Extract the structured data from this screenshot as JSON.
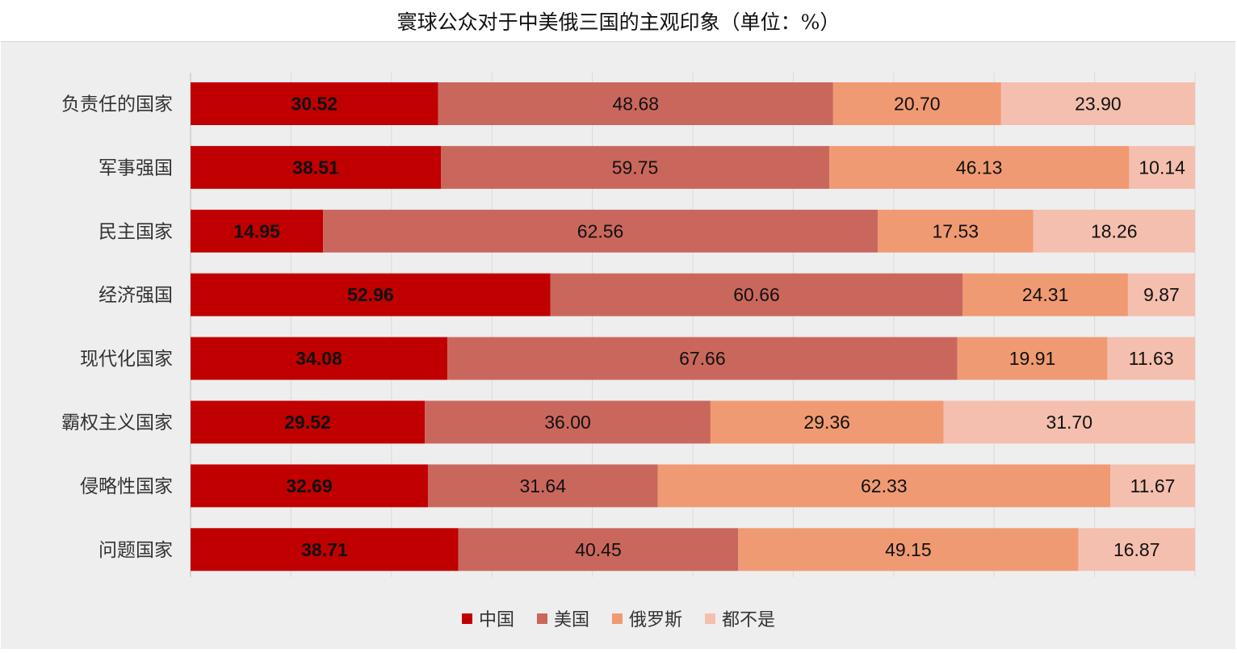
{
  "chart_data": {
    "type": "bar",
    "orientation": "horizontal",
    "stacked": true,
    "title": "寰球公众对于中美俄三国的主观印象（单位：%）",
    "categories": [
      "负责任的国家",
      "军事强国",
      "民主国家",
      "经济强国",
      "现代化国家",
      "霸权主义国家",
      "侵略性国家",
      "问题国家"
    ],
    "series": [
      {
        "name": "中国",
        "color": "#C00000",
        "values": [
          30.52,
          38.51,
          14.95,
          52.96,
          34.08,
          29.52,
          32.69,
          38.71
        ]
      },
      {
        "name": "美国",
        "color": "#CA675D",
        "values": [
          48.68,
          59.75,
          62.56,
          60.66,
          67.66,
          36.0,
          31.64,
          40.45
        ]
      },
      {
        "name": "俄罗斯",
        "color": "#F09A73",
        "values": [
          20.7,
          46.13,
          17.53,
          24.31,
          19.91,
          29.36,
          62.33,
          49.15
        ]
      },
      {
        "name": "都不是",
        "color": "#F4BFAE",
        "values": [
          23.9,
          10.14,
          18.26,
          9.87,
          11.63,
          31.7,
          11.67,
          16.87
        ]
      }
    ],
    "value_label_decimals": 2,
    "legend_position": "bottom",
    "grid": true
  }
}
